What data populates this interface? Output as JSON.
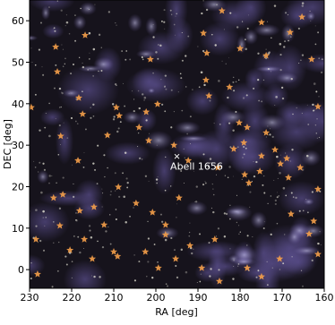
{
  "chart_data": {
    "type": "scatter",
    "xlabel": "RA [deg]",
    "ylabel": "DEC [deg]",
    "xlim": [
      230,
      160
    ],
    "ylim": [
      -4.5,
      65
    ],
    "xticks": [
      230,
      220,
      210,
      200,
      190,
      180,
      170,
      160
    ],
    "yticks": [
      0,
      10,
      20,
      30,
      40,
      50,
      60
    ],
    "annotation": {
      "text": "Abell 1656",
      "x": 195,
      "y": 27.3
    },
    "x": [
      184.3,
      165.3,
      174.9,
      168.1,
      216.8,
      188.7,
      180.0,
      187.9,
      223.8,
      201.3,
      173.8,
      163.0,
      223.4,
      188.1,
      182.5,
      218.3,
      187.4,
      199.6,
      209.4,
      229.6,
      217.4,
      202.3,
      161.5,
      208.7,
      204.0,
      180.2,
      178.3,
      222.6,
      211.5,
      201.7,
      173.8,
      179.1,
      181.5,
      195.7,
      171.7,
      174.9,
      218.5,
      168.9,
      192.3,
      170.4,
      185.3,
      178.9,
      175.3,
      165.7,
      168.5,
      177.9,
      222.1,
      208.9,
      224.3,
      161.5,
      194.5,
      204.7,
      167.9,
      218.1,
      214.7,
      200.8,
      162.5,
      212.3,
      197.7,
      222.8,
      217.0,
      191.9,
      186.0,
      228.5,
      197.7,
      163.6,
      210.0,
      220.4,
      209.1,
      202.5,
      161.5,
      170.6,
      215.1,
      195.3,
      189.1,
      178.3,
      228.1,
      174.9,
      199.4,
      184.9
    ],
    "series": [
      {
        "color": "#f5a04a",
        "values": [
          62.4,
          60.9,
          59.6,
          57.2,
          56.5,
          57.0,
          53.3,
          52.2,
          53.7,
          50.7,
          51.6,
          50.7,
          47.7,
          45.7,
          44.0,
          41.4,
          41.9,
          39.9,
          39.1,
          39.1,
          37.5,
          38.0,
          39.3,
          37.1,
          34.3,
          35.4,
          34.3,
          32.2,
          32.4,
          31.1,
          33.0,
          30.6,
          29.1,
          30.0,
          28.9,
          27.4,
          26.3,
          26.8,
          26.3,
          25.5,
          24.6,
          22.9,
          23.7,
          24.6,
          22.2,
          20.9,
          18.1,
          19.9,
          17.3,
          19.4,
          17.3,
          16.0,
          13.4,
          14.2,
          15.1,
          13.8,
          11.7,
          10.8,
          10.8,
          10.6,
          7.3,
          5.8,
          7.3,
          7.3,
          8.4,
          8.6,
          4.3,
          4.7,
          3.2,
          4.3,
          3.7,
          2.6,
          2.6,
          2.6,
          0.4,
          0.4,
          -1.1,
          -1.7,
          0.4,
          -2.8
        ]
      }
    ]
  }
}
